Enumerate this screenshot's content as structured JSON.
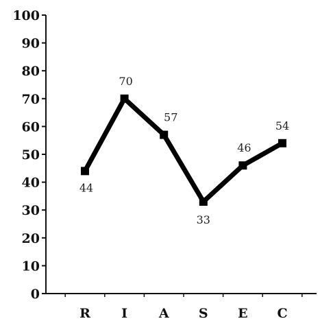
{
  "chart_data": {
    "type": "line",
    "title": "",
    "xlabel": "",
    "ylabel": "",
    "categories": [
      "R",
      "I",
      "A",
      "S",
      "E",
      "C"
    ],
    "values": [
      44,
      70,
      57,
      33,
      46,
      54
    ],
    "data_labels": [
      "44",
      "70",
      "57",
      "33",
      "46",
      "54"
    ],
    "ylim": [
      0,
      100
    ],
    "yticks": [
      0,
      10,
      20,
      30,
      40,
      50,
      60,
      70,
      80,
      90,
      100
    ],
    "ytick_labels": [
      "0",
      "10",
      "20",
      "30",
      "40",
      "50",
      "60",
      "70",
      "80",
      "90",
      "100"
    ],
    "grid": false,
    "legend": "none",
    "marker": "square",
    "line_color": "#000000"
  }
}
